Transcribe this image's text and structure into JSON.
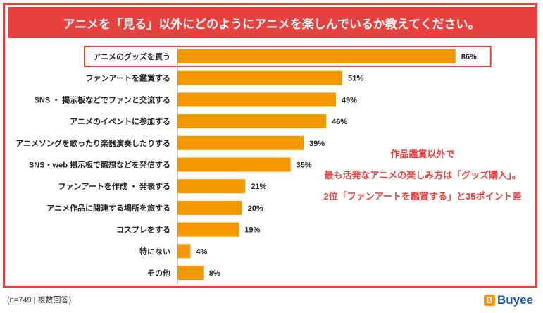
{
  "header": {
    "title": "アニメを「見る」以外にどのようにアニメを楽しんでいるか教えてください。"
  },
  "chart_data": {
    "type": "bar",
    "orientation": "horizontal",
    "title": "アニメを「見る」以外にどのようにアニメを楽しんでいるか教えてください。",
    "categories": [
      "アニメのグッズを買う",
      "ファンアートを鑑賞する",
      "SNS ・ 掲示板などでファンと交流する",
      "アニメのイベントに参加する",
      "アニメソングを歌ったり楽器演奏したりする",
      "SNS・web 掲示板で感想などを発信する",
      "ファンアートを作成 ・ 発表する",
      "アニメ作品に関連する場所を旅する",
      "コスプレをする",
      "特にない",
      "その他"
    ],
    "values": [
      86,
      51,
      49,
      46,
      39,
      35,
      21,
      20,
      19,
      4,
      8
    ],
    "value_labels": [
      "86%",
      "51%",
      "49%",
      "46%",
      "39%",
      "35%",
      "21%",
      "20%",
      "19%",
      "4%",
      "8%"
    ],
    "unit": "%",
    "xlim": [
      0,
      100
    ],
    "highlight_index": 0,
    "bar_color": "#f39800",
    "highlight_color": "#e8403e"
  },
  "annotation": {
    "lines": [
      "作品鑑賞以外で",
      "最も活発なアニメの楽しみ方は「グッズ購入」。",
      "2位「ファンアートを鑑賞する」と35ポイント差"
    ]
  },
  "footer": {
    "sample_note": "(n=749 | 複数回答)",
    "logo_text": "Buyee",
    "logo_mark": "B"
  }
}
